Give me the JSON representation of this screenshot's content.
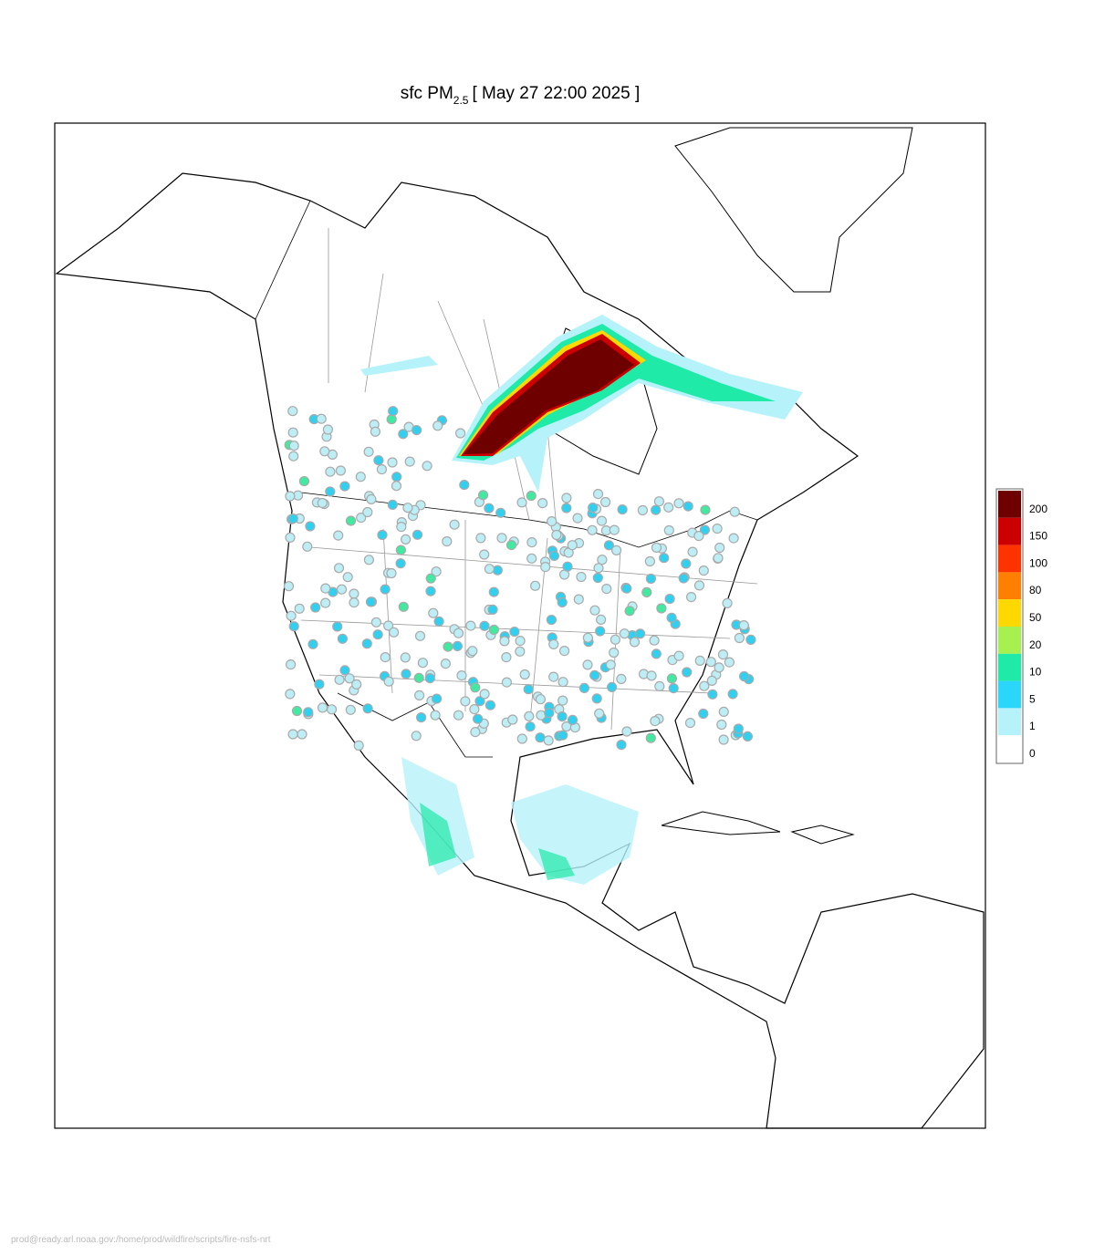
{
  "title": {
    "main": "sfc PM",
    "subscript": "2.5",
    "time": "[ May 27 22:00 2025 ]"
  },
  "legend": {
    "levels": [
      {
        "value": 200,
        "color": "#6e0000"
      },
      {
        "value": 150,
        "color": "#cc0000"
      },
      {
        "value": 100,
        "color": "#ff3300"
      },
      {
        "value": 80,
        "color": "#ff8000"
      },
      {
        "value": 50,
        "color": "#ffd800"
      },
      {
        "value": 20,
        "color": "#a6f050"
      },
      {
        "value": 10,
        "color": "#20eaa8"
      },
      {
        "value": 5,
        "color": "#2ad6fa"
      },
      {
        "value": 1,
        "color": "#b6f2fa"
      },
      {
        "value": 0,
        "color": "#ffffff"
      }
    ]
  },
  "footer": "prod@ready.arl.noaa.gov:/home/prod/wildfire/scripts/fire-nsfs-nrt"
}
